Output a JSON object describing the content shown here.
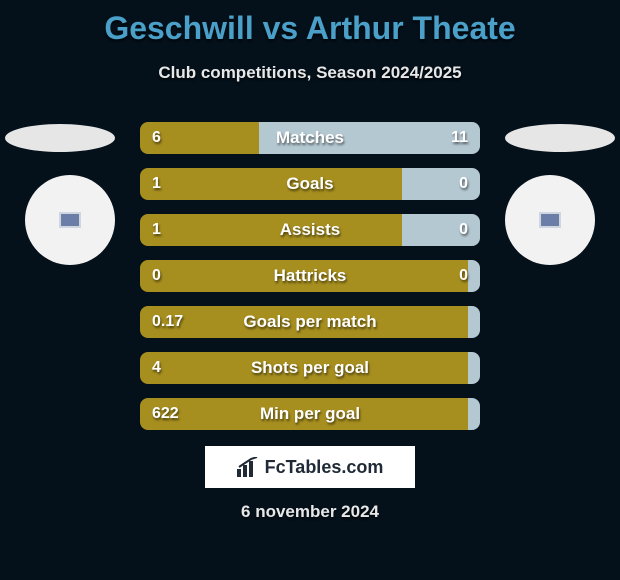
{
  "title": "Geschwill vs Arthur Theate",
  "subtitle": "Club competitions, Season 2024/2025",
  "date": "6 november 2024",
  "colors": {
    "left_fill": "#a68e1f",
    "right_fill": "#b4c8d2",
    "bg": "#04101a",
    "title_color": "#4aa0c8"
  },
  "logo_text": "FcTables.com",
  "rows": [
    {
      "label": "Matches",
      "left": "6",
      "right": "11",
      "left_pct": 35,
      "right_pct": 65
    },
    {
      "label": "Goals",
      "left": "1",
      "right": "0",
      "left_pct": 77,
      "right_pct": 23
    },
    {
      "label": "Assists",
      "left": "1",
      "right": "0",
      "left_pct": 77,
      "right_pct": 23
    },
    {
      "label": "Hattricks",
      "left": "0",
      "right": "0",
      "left_pct": 100,
      "right_pct": 0
    },
    {
      "label": "Goals per match",
      "left": "0.17",
      "right": "",
      "left_pct": 100,
      "right_pct": 0
    },
    {
      "label": "Shots per goal",
      "left": "4",
      "right": "",
      "left_pct": 100,
      "right_pct": 0
    },
    {
      "label": "Min per goal",
      "left": "622",
      "right": "",
      "left_pct": 100,
      "right_pct": 0
    }
  ]
}
